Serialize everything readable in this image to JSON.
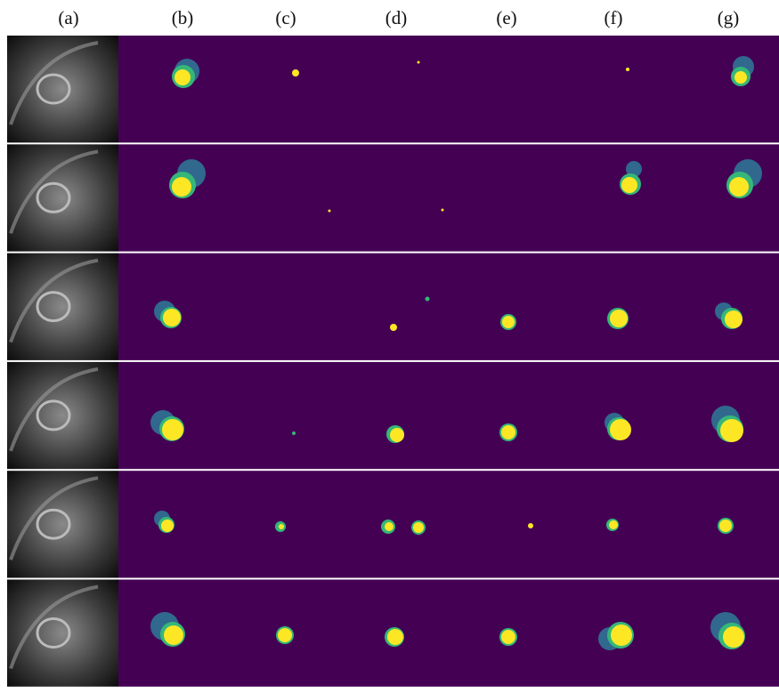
{
  "columns": [
    "(a)",
    "(b)",
    "(c)",
    "(d)",
    "(e)",
    "(f)",
    "(g)"
  ]
}
